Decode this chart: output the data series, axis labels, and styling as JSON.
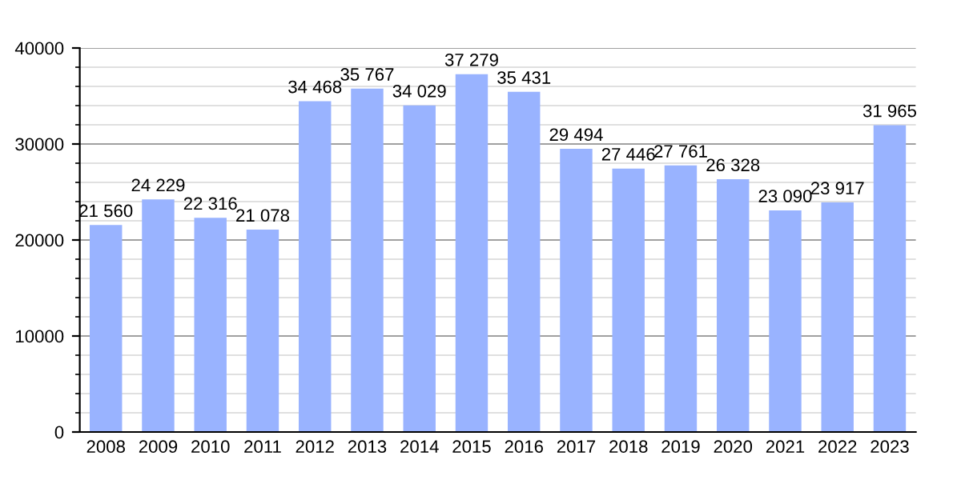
{
  "chart_data": {
    "type": "bar",
    "categories": [
      "2008",
      "2009",
      "2010",
      "2011",
      "2012",
      "2013",
      "2014",
      "2015",
      "2016",
      "2017",
      "2018",
      "2019",
      "2020",
      "2021",
      "2022",
      "2023"
    ],
    "values": [
      21560,
      24229,
      22316,
      21078,
      34468,
      35767,
      34029,
      37279,
      35431,
      29494,
      27446,
      27761,
      26328,
      23090,
      23917,
      31965
    ],
    "value_labels": [
      "21 560",
      "24 229",
      "22 316",
      "21 078",
      "34 468",
      "35 767",
      "34 029",
      "37 279",
      "35 431",
      "29 494",
      "27 446",
      "27 761",
      "26 328",
      "23 090",
      "23 917",
      "31 965"
    ],
    "color": "#99b3ff",
    "ylim": [
      0,
      40000
    ],
    "yticks": [
      0,
      10000,
      20000,
      30000,
      40000
    ],
    "grid": "y"
  }
}
